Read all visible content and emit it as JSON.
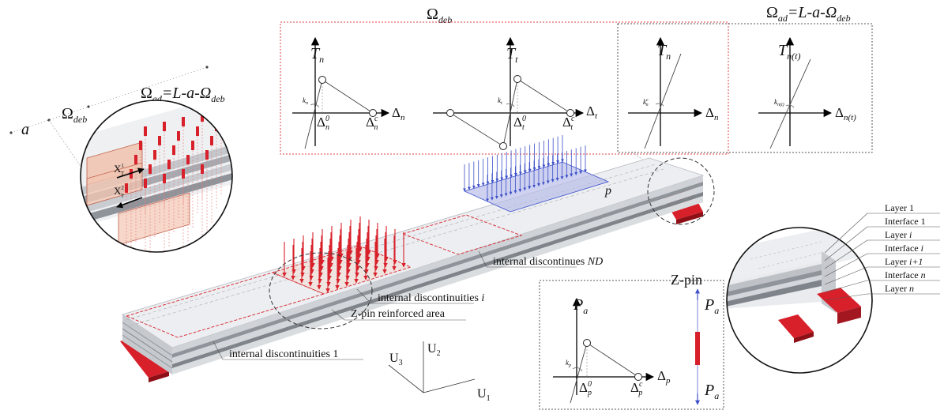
{
  "top_labels": {
    "omega_deb": "Ω",
    "omega_deb_sub": "deb",
    "omega_ad_eq": "Ω",
    "omega_ad_sub": "ad",
    "omega_ad_rest": "=L-a-Ω",
    "omega_ad_rest_sub": "deb"
  },
  "left_labels": {
    "a": "a",
    "omega_deb": "Ω",
    "omega_deb_sub": "deb",
    "omega_ad": "Ω",
    "omega_ad_sub": "ad",
    "omega_ad_rest": "=L-a-Ω",
    "omega_ad_rest_sub": "deb"
  },
  "detail_left": {
    "x1": "X",
    "x1_sup": "1",
    "x1_sub": "T",
    "x2": "X",
    "x2_sup": "2",
    "x2_sub": "T"
  },
  "laws": [
    {
      "axis_y": "T",
      "axis_y_sub": "n",
      "axis_x": "Δ",
      "axis_x_sub": "n",
      "k": "k",
      "k_sub": "n",
      "d0": "Δ",
      "d0_sub": "n",
      "d0_sup": "0",
      "dc": "Δ",
      "dc_sub": "n",
      "dc_sup": "c"
    },
    {
      "axis_y": "T",
      "axis_y_sub": "t",
      "axis_x": "Δ",
      "axis_x_sub": "t",
      "k": "k",
      "k_sub": "t",
      "d0": "Δ",
      "d0_sub": "t",
      "d0_sup": "0",
      "dc": "Δ",
      "dc_sub": "t",
      "dc_sup": "c"
    },
    {
      "axis_y": "T",
      "axis_y_sub": "n",
      "axis_x": "Δ",
      "axis_x_sub": "n",
      "k": "k",
      "k_sub": "n",
      "k_sup": "c"
    },
    {
      "axis_y": "T",
      "axis_y_sub": "n(t)",
      "axis_x": "Δ",
      "axis_x_sub": "n(t)",
      "k": "k",
      "k_sub": "n(t)"
    }
  ],
  "beam_labels": {
    "load": "p",
    "nd": "internal discontinues ",
    "nd_it": "ND",
    "disc_i": "internal discontinuities ",
    "disc_i_it": "i",
    "zpin_area": "Z-pin reinforced area",
    "disc_1": "internal discontinuities 1"
  },
  "axes": {
    "u1": "U",
    "u1_sub": "1",
    "u2": "U",
    "u2_sub": "2",
    "u3": "U",
    "u3_sub": "3"
  },
  "zpin": {
    "title": "Z-pin",
    "axis_y": "P",
    "axis_y_sub": "a",
    "axis_x": "Δ",
    "axis_x_sub": "p",
    "k": "k",
    "k_sub": "p",
    "d0": "Δ",
    "d0_sub": "p",
    "d0_sup": "0",
    "dc": "Δ",
    "dc_sub": "p",
    "dc_sup": "c",
    "force_top": "P",
    "force_top_sub": "a",
    "force_bot": "P",
    "force_bot_sub": "a"
  },
  "layers": [
    {
      "text": "Layer 1"
    },
    {
      "text": "Interface 1"
    },
    {
      "text": "Layer ",
      "it": "i"
    },
    {
      "text": "Interface ",
      "it": "i"
    },
    {
      "text": "Layer ",
      "it": "i+1"
    },
    {
      "text": "Interface ",
      "it": "n"
    },
    {
      "text": "Layer ",
      "it": "n"
    }
  ],
  "colors": {
    "pin_red": "#d8202a",
    "load_blue": "#3b4fc8",
    "load_fill": "#b9bde8",
    "beam_face": "#e9ebee",
    "beam_side": "#c9ccd1",
    "box_red": "#e04040"
  }
}
